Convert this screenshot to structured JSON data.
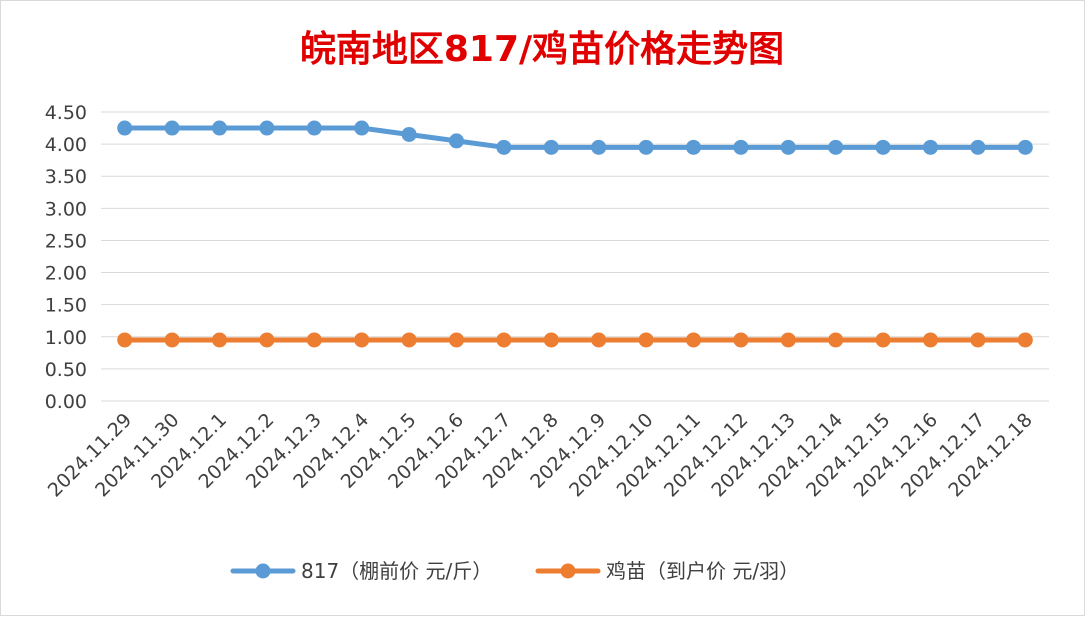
{
  "chart_data": {
    "type": "line",
    "title": "皖南地区817/鸡苗价格走势图",
    "xlabel": "",
    "ylabel": "",
    "categories": [
      "2024.11.29",
      "2024.11.30",
      "2024.12.1",
      "2024.12.2",
      "2024.12.3",
      "2024.12.4",
      "2024.12.5",
      "2024.12.6",
      "2024.12.7",
      "2024.12.8",
      "2024.12.9",
      "2024.12.10",
      "2024.12.11",
      "2024.12.12",
      "2024.12.13",
      "2024.12.14",
      "2024.12.15",
      "2024.12.16",
      "2024.12.17",
      "2024.12.18"
    ],
    "series": [
      {
        "name": "817（棚前价 元/斤）",
        "color": "#5b9bd5",
        "values": [
          4.25,
          4.25,
          4.25,
          4.25,
          4.25,
          4.25,
          4.15,
          4.05,
          3.95,
          3.95,
          3.95,
          3.95,
          3.95,
          3.95,
          3.95,
          3.95,
          3.95,
          3.95,
          3.95,
          3.95
        ]
      },
      {
        "name": "鸡苗（到户价 元/羽）",
        "color": "#ed7d31",
        "values": [
          0.95,
          0.95,
          0.95,
          0.95,
          0.95,
          0.95,
          0.95,
          0.95,
          0.95,
          0.95,
          0.95,
          0.95,
          0.95,
          0.95,
          0.95,
          0.95,
          0.95,
          0.95,
          0.95,
          0.95
        ]
      }
    ],
    "ylim": [
      0,
      4.5
    ],
    "yticks": [
      "0.00",
      "0.50",
      "1.00",
      "1.50",
      "2.00",
      "2.50",
      "3.00",
      "3.50",
      "4.00",
      "4.50"
    ],
    "grid": true,
    "legend": "bottom"
  }
}
